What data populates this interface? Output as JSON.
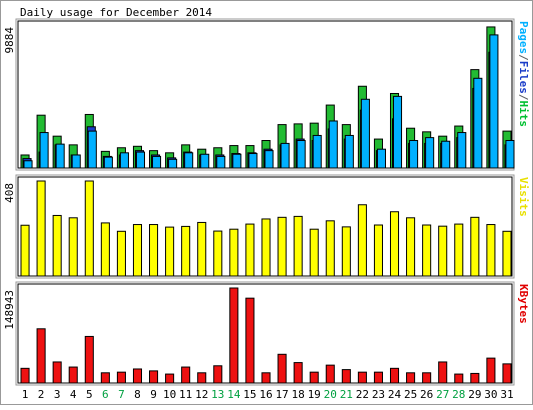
{
  "chart_data": {
    "type": "bar",
    "title": "Daily usage for December 2014",
    "categories": [
      "1",
      "2",
      "3",
      "4",
      "5",
      "6",
      "7",
      "8",
      "9",
      "10",
      "11",
      "12",
      "13",
      "14",
      "15",
      "16",
      "17",
      "18",
      "19",
      "20",
      "21",
      "22",
      "23",
      "24",
      "25",
      "26",
      "27",
      "28",
      "29",
      "30",
      "31"
    ],
    "weekend_days": [
      "6",
      "7",
      "13",
      "14",
      "20",
      "21",
      "27",
      "28"
    ],
    "panels": [
      {
        "id": "hits",
        "axis_max_label": "9884",
        "ylim": [
          0,
          9884
        ],
        "legend": [
          {
            "text": "Pages",
            "color": "#00b0ff"
          },
          {
            "text": "/",
            "color": "#606060"
          },
          {
            "text": "Files",
            "color": "#1a3cc8"
          },
          {
            "text": "/",
            "color": "#606060"
          },
          {
            "text": "Hits",
            "color": "#00c030"
          }
        ],
        "series": [
          {
            "name": "Hits",
            "color": "#22bb33",
            "values": [
              900,
              3650,
              2200,
              1600,
              3700,
              1150,
              1400,
              1500,
              1200,
              1050,
              1600,
              1300,
              1400,
              1550,
              1550,
              1900,
              3000,
              3050,
              3100,
              4350,
              3000,
              5650,
              2000,
              5150,
              2750,
              2500,
              2200,
              2900,
              6800,
              9750,
              2550
            ]
          },
          {
            "name": "Files",
            "color": "#1a3cc8",
            "values": [
              650,
              1100,
              1600,
              900,
              2850,
              800,
              900,
              1200,
              900,
              700,
              1100,
              900,
              900,
              1000,
              1050,
              1300,
              1600,
              2000,
              1900,
              2700,
              2000,
              4000,
              1200,
              3400,
              1700,
              1700,
              1700,
              2100,
              5500,
              8000,
              1600
            ]
          },
          {
            "name": "Pages",
            "color": "#00b0ff",
            "values": [
              500,
              2450,
              1650,
              900,
              2550,
              750,
              1050,
              1100,
              800,
              600,
              1050,
              950,
              800,
              950,
              1000,
              1200,
              1700,
              1900,
              2250,
              3250,
              2250,
              4750,
              1300,
              4950,
              1900,
              2100,
              1850,
              2450,
              6200,
              9200,
              1900
            ]
          }
        ]
      },
      {
        "id": "visits",
        "axis_max_label": "408",
        "ylim": [
          0,
          408
        ],
        "legend": [
          {
            "text": "Visits",
            "color": "#e8e000"
          }
        ],
        "series": [
          {
            "name": "Visits",
            "color": "#ffff00",
            "values": [
              218,
              408,
              260,
              250,
              408,
              228,
              192,
              221,
              221,
              210,
              213,
              230,
              193,
              201,
              223,
              245,
              252,
              256,
              201,
              237,
              211,
              306,
              219,
              276,
              250,
              219,
              214,
              223,
              252,
              221,
              192
            ]
          }
        ]
      },
      {
        "id": "kbytes",
        "axis_max_label": "148943",
        "ylim": [
          0,
          148943
        ],
        "legend": [
          {
            "text": "KBytes",
            "color": "#e00000"
          }
        ],
        "series": [
          {
            "name": "KBytes",
            "color": "#ee1111",
            "values": [
              23000,
              85000,
              33000,
              25000,
              73000,
              16000,
              17000,
              22000,
              19000,
              14000,
              25000,
              16000,
              27000,
              148943,
              133000,
              16000,
              45000,
              32000,
              17000,
              28000,
              21000,
              17000,
              17000,
              23000,
              16000,
              16000,
              33000,
              14000,
              15000,
              39000,
              30000
            ]
          }
        ]
      }
    ]
  }
}
